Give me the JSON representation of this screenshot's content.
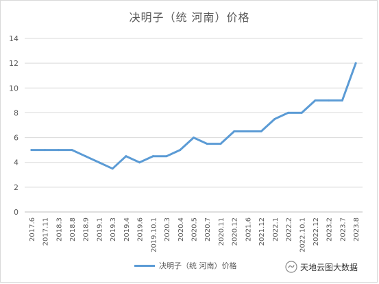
{
  "chart_data": {
    "type": "line",
    "title": "决明子（统 河南）价格",
    "categories": [
      "2017.6",
      "2017.11",
      "2018.3",
      "2018.8",
      "2018.9",
      "2019.1",
      "2019.3",
      "2019.4",
      "2019.6",
      "2019.10.1",
      "2020.3",
      "2020.4",
      "2020.5",
      "2020.7",
      "2020.11",
      "2020.12",
      "2021.6",
      "2021.12",
      "2022.1",
      "2022.2",
      "2022.10.1",
      "2022.12",
      "2023.2",
      "2023.7",
      "2023.8"
    ],
    "series": [
      {
        "name": "决明子（统 河南）价格",
        "values": [
          5,
          5,
          5,
          5,
          4.5,
          4,
          3.5,
          4.5,
          4,
          4.5,
          4.5,
          5,
          6,
          5.5,
          5.5,
          6.5,
          6.5,
          6.5,
          7.5,
          8,
          8,
          9,
          9,
          9,
          12
        ]
      }
    ],
    "y_ticks": [
      "0",
      "2",
      "4",
      "6",
      "8",
      "10",
      "12",
      "14"
    ],
    "ylim": [
      0,
      14
    ],
    "grid": "horizontal",
    "legend_position": "bottom",
    "line_color": "#5b9bd5"
  },
  "watermark": {
    "text": "天地云图大数据",
    "icon": "wechat-official-account-icon"
  }
}
